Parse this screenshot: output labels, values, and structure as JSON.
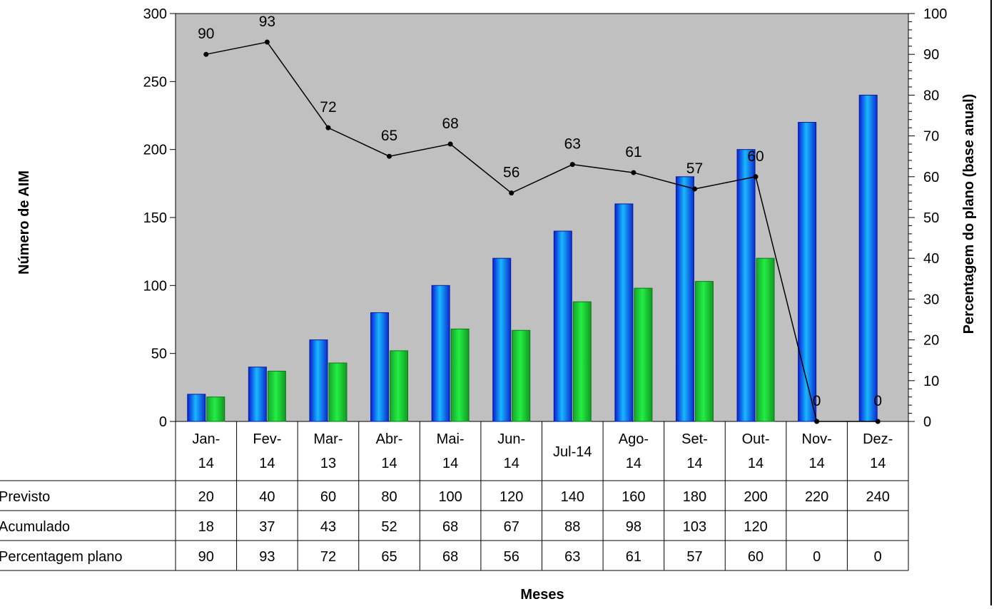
{
  "chart_data": {
    "type": "bar",
    "categories": [
      [
        "Jan-",
        "14"
      ],
      [
        "Fev-",
        "14"
      ],
      [
        "Mar-",
        "13"
      ],
      [
        "Abr-",
        "14"
      ],
      [
        "Mai-",
        "14"
      ],
      [
        "Jun-",
        "14"
      ],
      [
        "Jul-14"
      ],
      [
        "Ago-",
        "14"
      ],
      [
        "Set-",
        "14"
      ],
      [
        "Out-",
        "14"
      ],
      [
        "Nov-",
        "14"
      ],
      [
        "Dez-",
        "14"
      ]
    ],
    "xlabel": "Meses",
    "ylabel": "Número de AIM",
    "y2label": "Percentagem do plano (base anual)",
    "ylim": [
      0,
      300
    ],
    "y2lim": [
      0,
      100
    ],
    "yticks": [
      0,
      50,
      100,
      150,
      200,
      250,
      300
    ],
    "y2ticks": [
      0,
      10,
      20,
      30,
      40,
      50,
      60,
      70,
      80,
      90,
      100
    ],
    "grid": false,
    "plot_background": "#c0c0c0",
    "series": [
      {
        "name": "Previsto",
        "kind": "bar",
        "axis": "left",
        "color": "#1a6df0",
        "values": [
          20,
          40,
          60,
          80,
          100,
          120,
          140,
          160,
          180,
          200,
          220,
          240
        ]
      },
      {
        "name": "Acumulado",
        "kind": "bar",
        "axis": "left",
        "color": "#22cc33",
        "values": [
          18,
          37,
          43,
          52,
          68,
          67,
          88,
          98,
          103,
          120,
          null,
          null
        ]
      },
      {
        "name": "Percentagem plano",
        "kind": "line",
        "axis": "right",
        "color": "#000000",
        "values": [
          90,
          93,
          72,
          65,
          68,
          56,
          63,
          61,
          57,
          60,
          0,
          0
        ]
      }
    ],
    "table": {
      "rows": [
        {
          "label": "Previsto",
          "cells": [
            "20",
            "40",
            "60",
            "80",
            "100",
            "120",
            "140",
            "160",
            "180",
            "200",
            "220",
            "240"
          ]
        },
        {
          "label": "Acumulado",
          "cells": [
            "18",
            "37",
            "43",
            "52",
            "68",
            "67",
            "88",
            "98",
            "103",
            "120",
            "",
            ""
          ]
        },
        {
          "label": "Percentagem plano",
          "cells": [
            "90",
            "93",
            "72",
            "65",
            "68",
            "56",
            "63",
            "61",
            "57",
            "60",
            "0",
            "0"
          ]
        }
      ]
    }
  }
}
